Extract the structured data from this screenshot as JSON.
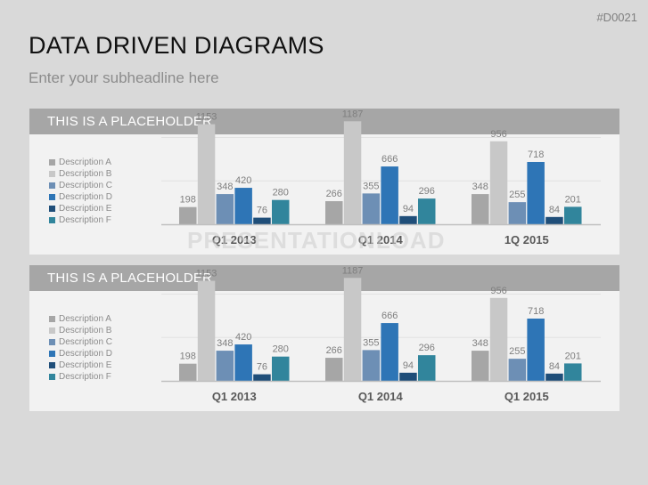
{
  "slide_code": "#D0021",
  "title": "DATA DRIVEN DIAGRAMS",
  "subtitle": "Enter your subheadline here",
  "watermark": "PRESENTATIONLOAD",
  "colors": {
    "Description A": "#a6a6a6",
    "Description B": "#c8c8c8",
    "Description C": "#6d8fb5",
    "Description D": "#2e75b6",
    "Description E": "#1f4e79",
    "Description F": "#31859c"
  },
  "chart_data": [
    {
      "type": "bar",
      "title": "THIS IS A PLACEHOLDER",
      "categories": [
        "Q1 2013",
        "Q1 2014",
        "1Q 2015"
      ],
      "series": [
        {
          "name": "Description A",
          "values": [
            198,
            266,
            348
          ]
        },
        {
          "name": "Description B",
          "values": [
            1153,
            1187,
            956
          ]
        },
        {
          "name": "Description C",
          "values": [
            348,
            355,
            255
          ]
        },
        {
          "name": "Description D",
          "values": [
            420,
            666,
            718
          ]
        },
        {
          "name": "Description E",
          "values": [
            76,
            94,
            84
          ]
        },
        {
          "name": "Description F",
          "values": [
            280,
            296,
            201
          ]
        }
      ],
      "ylim": [
        0,
        1200
      ],
      "grid": true,
      "legend": "left"
    },
    {
      "type": "bar",
      "title": "THIS IS A PLACEHOLDER",
      "categories": [
        "Q1 2013",
        "Q1 2014",
        "Q1 2015"
      ],
      "series": [
        {
          "name": "Description A",
          "values": [
            198,
            266,
            348
          ]
        },
        {
          "name": "Description B",
          "values": [
            1153,
            1187,
            956
          ]
        },
        {
          "name": "Description C",
          "values": [
            348,
            355,
            255
          ]
        },
        {
          "name": "Description D",
          "values": [
            420,
            666,
            718
          ]
        },
        {
          "name": "Description E",
          "values": [
            76,
            94,
            84
          ]
        },
        {
          "name": "Description F",
          "values": [
            280,
            296,
            201
          ]
        }
      ],
      "ylim": [
        0,
        1200
      ],
      "grid": true,
      "legend": "left"
    }
  ]
}
